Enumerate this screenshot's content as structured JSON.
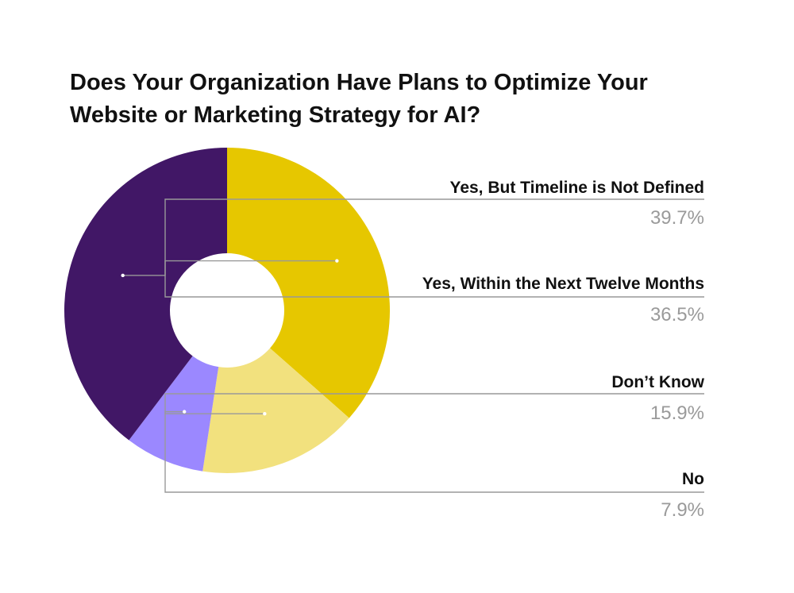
{
  "chart_data": {
    "type": "pie",
    "style": "donut",
    "title_lines": [
      "Does Your Organization Have Plans to Optimize Your",
      "Website or Marketing Strategy for AI?"
    ],
    "slices": [
      {
        "label": "Yes, Within the Next Twelve Months",
        "value": 36.5,
        "value_label": "36.5%",
        "color": "#E6C700"
      },
      {
        "label": "Don’t Know",
        "value": 15.9,
        "value_label": "15.9%",
        "color": "#F2E17E"
      },
      {
        "label": "No",
        "value": 7.9,
        "value_label": "7.9%",
        "color": "#9B88FF"
      },
      {
        "label": "Yes, But Timeline is Not Defined",
        "value": 39.7,
        "value_label": "39.7%",
        "color": "#411766"
      }
    ],
    "legend_placement": "right",
    "colors": {
      "label_text": "#111111",
      "value_text": "#9a9a9a",
      "leader_line": "#999999"
    }
  }
}
